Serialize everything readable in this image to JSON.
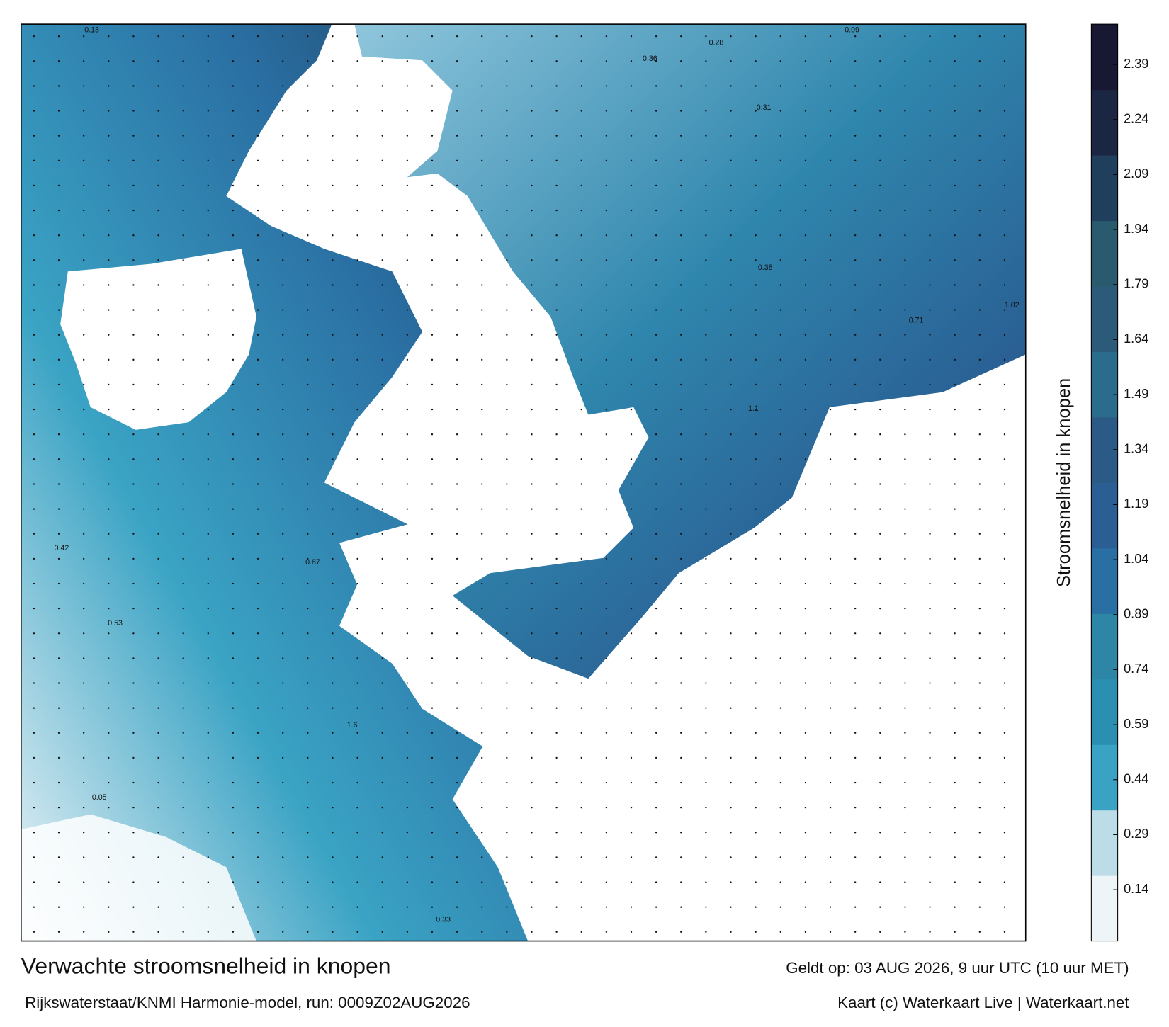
{
  "title": "Verwachte stroomsnelheid in knopen",
  "subtitle": "Rijkswaterstaat/KNMI Harmonie-model, run: 0009Z02AUG2026",
  "valid_time": "Geldt op: 03 AUG 2026, 9 uur UTC (10 uur MET)",
  "credit": "Kaart (c) Waterkaart Live | Waterkaart.net",
  "colorbar": {
    "label": "Stroomsnelheid in knopen",
    "clim": [
      0,
      2.5
    ],
    "ticks": [
      0.14,
      0.29,
      0.44,
      0.59,
      0.74,
      0.89,
      1.04,
      1.19,
      1.34,
      1.49,
      1.64,
      1.79,
      1.94,
      2.09,
      2.24,
      2.39
    ],
    "colors": [
      "#eef5f8",
      "#bcdce8",
      "#3aa3c4",
      "#2a8fb0",
      "#2e86a6",
      "#2a6fa3",
      "#2a5f94",
      "#2c5a86",
      "#2b6b8c",
      "#2c5b7a",
      "#2a5a6e",
      "#1f3f5c",
      "#1b2642",
      "#191833"
    ]
  },
  "map_labels": [
    "0.28",
    "0.36",
    "1.1",
    "0.87",
    "0.53",
    "1.6",
    "0.05",
    "0.09",
    "0.31",
    "1.02",
    "0.42",
    "0.33",
    "0.13",
    "0.71",
    "0.38"
  ]
}
